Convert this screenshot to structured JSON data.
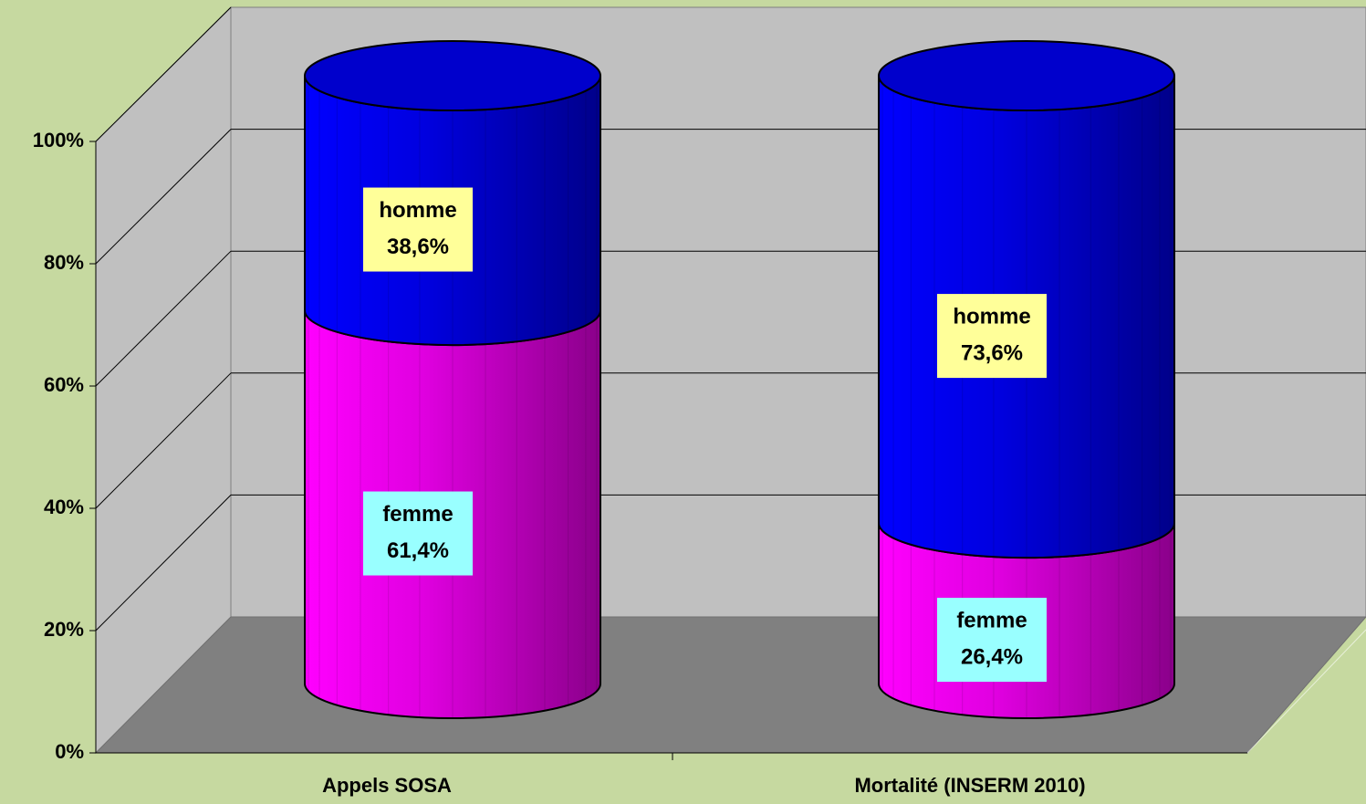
{
  "chart_data": {
    "type": "bar3d-stacked-cylinder",
    "categories": [
      "Appels SOSA",
      "Mortalité (INSERM 2010)"
    ],
    "series": [
      {
        "name": "femme",
        "color": "#ff00ff",
        "values": [
          61.4,
          26.4
        ],
        "value_labels": [
          "61,4%",
          "26,4%"
        ]
      },
      {
        "name": "homme",
        "color": "#0000ff",
        "values": [
          38.6,
          73.6
        ],
        "value_labels": [
          "38,6%",
          "73,6%"
        ]
      }
    ],
    "ylim": [
      0,
      100
    ],
    "yticks": [
      {
        "value": 0,
        "label": "0%"
      },
      {
        "value": 20,
        "label": "20%"
      },
      {
        "value": 40,
        "label": "40%"
      },
      {
        "value": 60,
        "label": "60%"
      },
      {
        "value": 80,
        "label": "80%"
      },
      {
        "value": 100,
        "label": "100%"
      }
    ],
    "grid": true
  }
}
